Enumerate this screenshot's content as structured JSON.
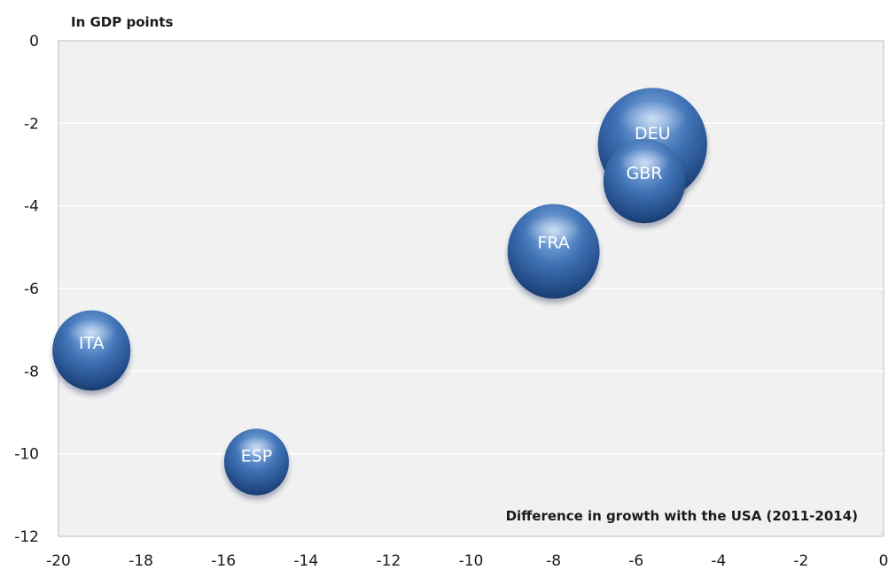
{
  "chart_data": {
    "type": "bubble",
    "ylabel": "In GDP points",
    "xlabel": "Difference in growth with the USA (2011-2014)",
    "xlim": [
      -20,
      0
    ],
    "ylim": [
      -12,
      0
    ],
    "xticks": [
      -20,
      -18,
      -16,
      -14,
      -12,
      -10,
      -8,
      -6,
      -4,
      -2,
      0
    ],
    "yticks": [
      0,
      -2,
      -4,
      -6,
      -8,
      -10,
      -12
    ],
    "grid": "horizontal",
    "colors": {
      "bubble": "#2f5f9e",
      "plot_background": "#f1f1f1",
      "gridline": "#ffffff"
    },
    "points": [
      {
        "label": "ITA",
        "x": -19.2,
        "y": -7.5,
        "size": 1.0
      },
      {
        "label": "ESP",
        "x": -15.2,
        "y": -10.2,
        "size": 0.83
      },
      {
        "label": "FRA",
        "x": -8.0,
        "y": -5.1,
        "size": 1.18
      },
      {
        "label": "DEU",
        "x": -5.6,
        "y": -2.5,
        "size": 1.4
      },
      {
        "label": "GBR",
        "x": -5.8,
        "y": -3.4,
        "size": 1.05
      }
    ]
  }
}
